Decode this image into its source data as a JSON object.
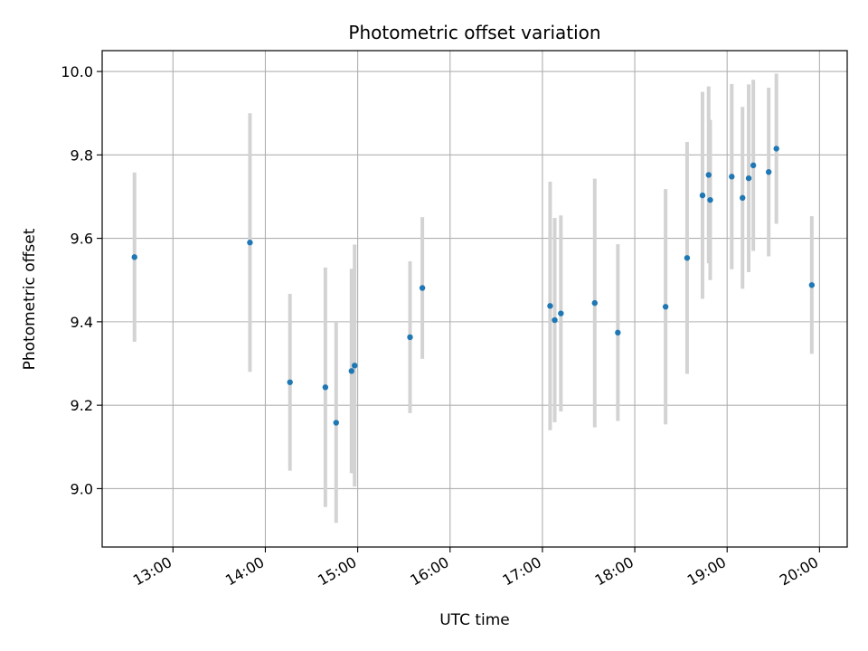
{
  "chart_data": {
    "type": "scatter",
    "title": "Photometric offset variation",
    "xlabel": "UTC time",
    "ylabel": "Photometric offset",
    "x_unit": "UTC time of day (HH:MM)",
    "xlim": [
      "12:14",
      "20:18"
    ],
    "ylim": [
      8.86,
      10.05
    ],
    "x_ticks": [
      "13:00",
      "14:00",
      "15:00",
      "16:00",
      "17:00",
      "18:00",
      "19:00",
      "20:00"
    ],
    "y_ticks": [
      9.0,
      9.2,
      9.4,
      9.6,
      9.8,
      10.0
    ],
    "y_tick_labels": [
      "9.0",
      "9.2",
      "9.4",
      "9.6",
      "9.8",
      "10.0"
    ],
    "grid": true,
    "colors": {
      "point": "#1f77b4",
      "errorbar": "#d3d3d3",
      "grid": "#b0b0b0"
    },
    "points": [
      {
        "x": "12:35",
        "y": 9.555,
        "err": 0.203
      },
      {
        "x": "13:50",
        "y": 9.59,
        "err": 0.31
      },
      {
        "x": "14:16",
        "y": 9.255,
        "err": 0.212
      },
      {
        "x": "14:39",
        "y": 9.243,
        "err": 0.287
      },
      {
        "x": "14:46",
        "y": 9.158,
        "err": 0.24
      },
      {
        "x": "14:56",
        "y": 9.282,
        "err": 0.245
      },
      {
        "x": "14:58",
        "y": 9.295,
        "err": 0.29
      },
      {
        "x": "15:34",
        "y": 9.363,
        "err": 0.182
      },
      {
        "x": "15:42",
        "y": 9.481,
        "err": 0.17
      },
      {
        "x": "17:05",
        "y": 9.438,
        "err": 0.298
      },
      {
        "x": "17:08",
        "y": 9.404,
        "err": 0.245
      },
      {
        "x": "17:12",
        "y": 9.42,
        "err": 0.235
      },
      {
        "x": "17:34",
        "y": 9.445,
        "err": 0.298
      },
      {
        "x": "17:49",
        "y": 9.374,
        "err": 0.212
      },
      {
        "x": "18:20",
        "y": 9.436,
        "err": 0.282
      },
      {
        "x": "18:34",
        "y": 9.553,
        "err": 0.278
      },
      {
        "x": "18:44",
        "y": 9.703,
        "err": 0.248
      },
      {
        "x": "18:48",
        "y": 9.752,
        "err": 0.212
      },
      {
        "x": "18:49",
        "y": 9.692,
        "err": 0.192
      },
      {
        "x": "19:03",
        "y": 9.748,
        "err": 0.222
      },
      {
        "x": "19:10",
        "y": 9.697,
        "err": 0.218
      },
      {
        "x": "19:14",
        "y": 9.744,
        "err": 0.225
      },
      {
        "x": "19:17",
        "y": 9.775,
        "err": 0.205
      },
      {
        "x": "19:27",
        "y": 9.759,
        "err": 0.202
      },
      {
        "x": "19:32",
        "y": 9.815,
        "err": 0.18
      },
      {
        "x": "19:55",
        "y": 9.488,
        "err": 0.165
      }
    ]
  }
}
